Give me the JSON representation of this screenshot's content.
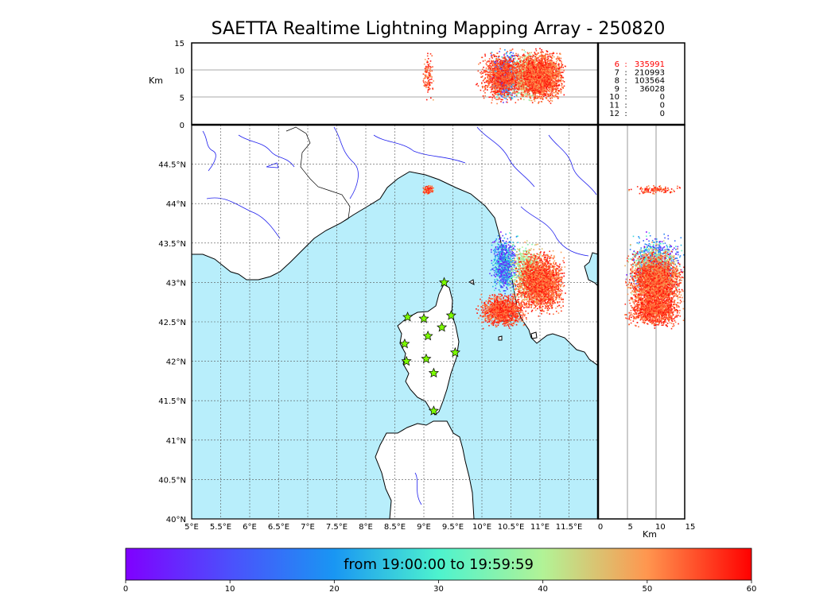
{
  "chart_data": {
    "type": "scatter",
    "title": "SAETTA Realtime Lightning Mapping Array - 250820",
    "map": {
      "xlim": [
        5.0,
        12.0
      ],
      "ylim": [
        40.0,
        45.0
      ],
      "x_ticks": [
        {
          "value": 5.0,
          "label": "5°E"
        },
        {
          "value": 5.5,
          "label": "5.5°E"
        },
        {
          "value": 6.0,
          "label": "6°E"
        },
        {
          "value": 6.5,
          "label": "6.5°E"
        },
        {
          "value": 7.0,
          "label": "7°E"
        },
        {
          "value": 7.5,
          "label": "7.5°E"
        },
        {
          "value": 8.0,
          "label": "8°E"
        },
        {
          "value": 8.5,
          "label": "8.5°E"
        },
        {
          "value": 9.0,
          "label": "9°E"
        },
        {
          "value": 9.5,
          "label": "9.5°E"
        },
        {
          "value": 10.0,
          "label": "10°E"
        },
        {
          "value": 10.5,
          "label": "10.5°E"
        },
        {
          "value": 11.0,
          "label": "11°E"
        },
        {
          "value": 11.5,
          "label": "11.5°E"
        }
      ],
      "y_ticks": [
        {
          "value": 40.0,
          "label": "40°N"
        },
        {
          "value": 40.5,
          "label": "40.5°N"
        },
        {
          "value": 41.0,
          "label": "41°N"
        },
        {
          "value": 41.5,
          "label": "41.5°N"
        },
        {
          "value": 42.0,
          "label": "42°N"
        },
        {
          "value": 42.5,
          "label": "42.5°N"
        },
        {
          "value": 43.0,
          "label": "43°N"
        },
        {
          "value": 43.5,
          "label": "43.5°N"
        },
        {
          "value": 44.0,
          "label": "44°N"
        },
        {
          "value": 44.5,
          "label": "44.5°N"
        }
      ],
      "grid": true
    },
    "altitude": {
      "ylabel": "Km",
      "xlabel": "Km",
      "zlim": [
        0,
        15
      ],
      "ticks": [
        "0",
        "5",
        "10",
        "15"
      ]
    },
    "stations": [
      {
        "lon": 9.35,
        "lat": 43.0
      },
      {
        "lon": 8.72,
        "lat": 42.56
      },
      {
        "lon": 9.0,
        "lat": 42.54
      },
      {
        "lon": 9.47,
        "lat": 42.58
      },
      {
        "lon": 9.31,
        "lat": 42.43
      },
      {
        "lon": 9.07,
        "lat": 42.32
      },
      {
        "lon": 8.67,
        "lat": 42.22
      },
      {
        "lon": 9.54,
        "lat": 42.11
      },
      {
        "lon": 8.7,
        "lat": 42.0
      },
      {
        "lon": 9.04,
        "lat": 42.03
      },
      {
        "lon": 9.17,
        "lat": 41.85
      },
      {
        "lon": 9.17,
        "lat": 41.37
      }
    ],
    "clusters": [
      {
        "name": "main-storm-red",
        "lon": [
          10.5,
          11.5
        ],
        "lat": [
          42.55,
          43.45
        ],
        "time_min": [
          48,
          60
        ],
        "count": 2600
      },
      {
        "name": "south-storm-red",
        "lon": [
          9.85,
          10.85
        ],
        "lat": [
          42.4,
          42.9
        ],
        "time_min": [
          50,
          60
        ],
        "count": 1200
      },
      {
        "name": "early-cells-purple-green",
        "lon": [
          10.1,
          10.65
        ],
        "lat": [
          42.8,
          43.7
        ],
        "time_min": [
          0,
          32
        ],
        "count": 900
      },
      {
        "name": "mid-cells-yellow-orange",
        "lon": [
          10.4,
          11.1
        ],
        "lat": [
          42.7,
          43.6
        ],
        "time_min": [
          32,
          50
        ],
        "count": 700
      },
      {
        "name": "ligurian-cell",
        "lon": [
          8.95,
          9.18
        ],
        "lat": [
          44.12,
          44.25
        ],
        "time_min": [
          48,
          60
        ],
        "count": 120
      }
    ],
    "station_counts": [
      {
        "stations": "6",
        "count": "335991",
        "highlight": true
      },
      {
        "stations": "7",
        "count": "210993",
        "highlight": false
      },
      {
        "stations": "8",
        "count": "103564",
        "highlight": false
      },
      {
        "stations": "9",
        "count": "36028",
        "highlight": false
      },
      {
        "stations": "10",
        "count": "0",
        "highlight": false
      },
      {
        "stations": "11",
        "count": "0",
        "highlight": false
      },
      {
        "stations": "12",
        "count": "0",
        "highlight": false
      }
    ],
    "colorbar": {
      "label": "from 19:00:00 to 19:59:59",
      "range": [
        0,
        60
      ],
      "ticks": [
        "0",
        "10",
        "20",
        "30",
        "40",
        "50",
        "60"
      ]
    }
  },
  "colors": {
    "sea": "#b8eefb",
    "land": "#ffffff",
    "river": "#2020ee",
    "grid": "#555555",
    "count_highlight": "#ff0000"
  }
}
